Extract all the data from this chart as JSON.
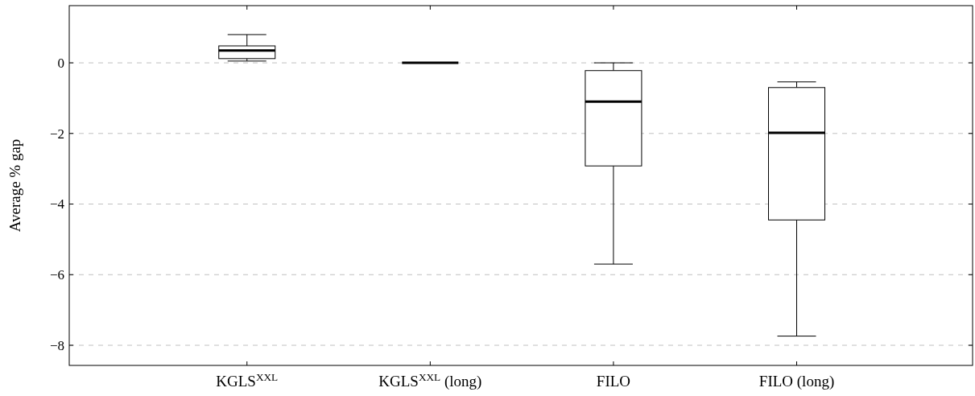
{
  "chart_data": {
    "type": "box",
    "ylabel": "Average % gap",
    "categories": [
      "KGLS$^{XXL}$",
      "KGLS$^{XXL}$ (long)",
      "FILO",
      "FILO (long)"
    ],
    "boxes": [
      {
        "low": 0.05,
        "q1": 0.12,
        "median": 0.35,
        "q3": 0.48,
        "high": 0.8
      },
      {
        "low": 0,
        "q1": 0,
        "median": 0,
        "q3": 0,
        "high": 0
      },
      {
        "low": -5.7,
        "q1": -2.92,
        "median": -1.1,
        "q3": -0.22,
        "high": 0
      },
      {
        "low": -7.74,
        "q1": -4.45,
        "median": -1.98,
        "q3": -0.7,
        "high": -0.54
      }
    ],
    "ylim": [
      -8.57,
      1.62
    ],
    "yticks": [
      {
        "value": -8,
        "label": "−8"
      },
      {
        "value": -6,
        "label": "−6"
      },
      {
        "value": -4,
        "label": "−4"
      },
      {
        "value": -2,
        "label": "−2"
      },
      0
    ],
    "grid": "y",
    "color": "#000000"
  }
}
